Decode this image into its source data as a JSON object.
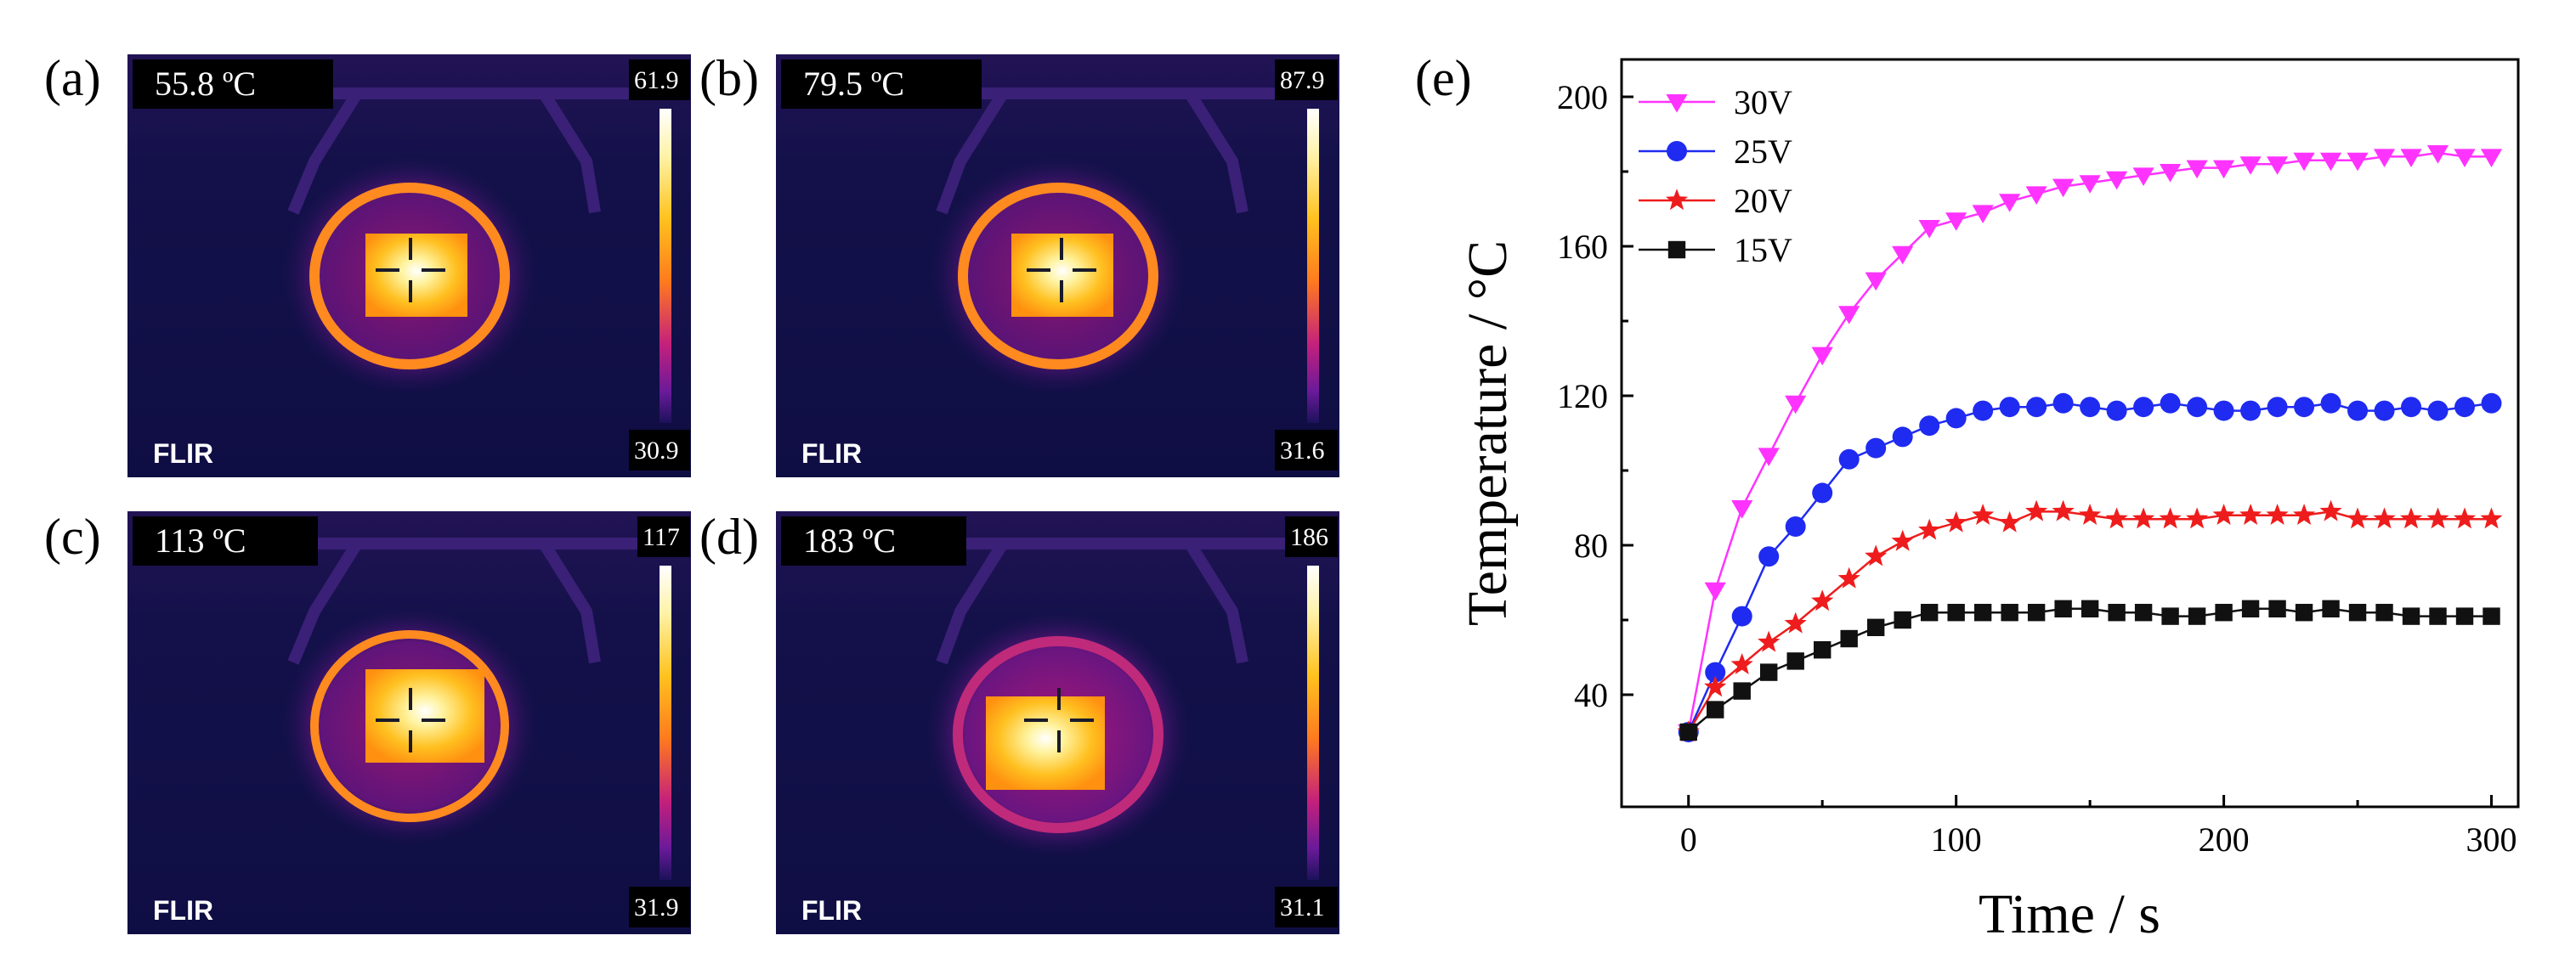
{
  "thermal_panels": [
    {
      "letter": "(a)",
      "spot_temp": "55.8 ºC",
      "scale_max": "61.9",
      "scale_min": "30.9",
      "brand": "FLIR"
    },
    {
      "letter": "(b)",
      "spot_temp": "79.5 ºC",
      "scale_max": "87.9",
      "scale_min": "31.6",
      "brand": "FLIR"
    },
    {
      "letter": "(c)",
      "spot_temp": "113 ºC",
      "scale_max": "117",
      "scale_min": "31.9",
      "brand": "FLIR"
    },
    {
      "letter": "(d)",
      "spot_temp": "183 ºC",
      "scale_max": "186",
      "scale_min": "31.1",
      "brand": "FLIR"
    }
  ],
  "chart_data": {
    "type": "line",
    "panel_letter": "(e)",
    "title": "",
    "xlabel": "Time / s",
    "ylabel": "Temperature / °C",
    "xlim": [
      -25,
      310
    ],
    "ylim": [
      10,
      210
    ],
    "xticks": [
      0,
      100,
      200,
      300
    ],
    "yticks": [
      40,
      80,
      120,
      160,
      200
    ],
    "legend_position": "top-left",
    "x": [
      0,
      10,
      20,
      30,
      40,
      50,
      60,
      70,
      80,
      90,
      100,
      110,
      120,
      130,
      140,
      150,
      160,
      170,
      180,
      190,
      200,
      210,
      220,
      230,
      240,
      250,
      260,
      270,
      280,
      290,
      300
    ],
    "series": [
      {
        "name": "30V",
        "color": "#ff33ff",
        "marker": "triangle-down",
        "values": [
          30,
          68,
          90,
          104,
          118,
          131,
          142,
          151,
          158,
          165,
          167,
          169,
          172,
          174,
          176,
          177,
          178,
          179,
          180,
          181,
          181,
          182,
          182,
          183,
          183,
          183,
          184,
          184,
          185,
          184,
          184
        ]
      },
      {
        "name": "25V",
        "color": "#1f2bf0",
        "marker": "circle",
        "values": [
          30,
          46,
          61,
          77,
          85,
          94,
          103,
          106,
          109,
          112,
          114,
          116,
          117,
          117,
          118,
          117,
          116,
          117,
          118,
          117,
          116,
          116,
          117,
          117,
          118,
          116,
          116,
          117,
          116,
          117,
          118
        ]
      },
      {
        "name": "20V",
        "color": "#ee1c1c",
        "marker": "star",
        "values": [
          30,
          42,
          48,
          54,
          59,
          65,
          71,
          77,
          81,
          84,
          86,
          88,
          86,
          89,
          89,
          88,
          87,
          87,
          87,
          87,
          88,
          88,
          88,
          88,
          89,
          87,
          87,
          87,
          87,
          87,
          87
        ]
      },
      {
        "name": "15V",
        "color": "#111111",
        "marker": "square",
        "values": [
          30,
          36,
          41,
          46,
          49,
          52,
          55,
          58,
          60,
          62,
          62,
          62,
          62,
          62,
          63,
          63,
          62,
          62,
          61,
          61,
          62,
          63,
          63,
          62,
          63,
          62,
          62,
          61,
          61,
          61,
          61
        ]
      }
    ]
  }
}
